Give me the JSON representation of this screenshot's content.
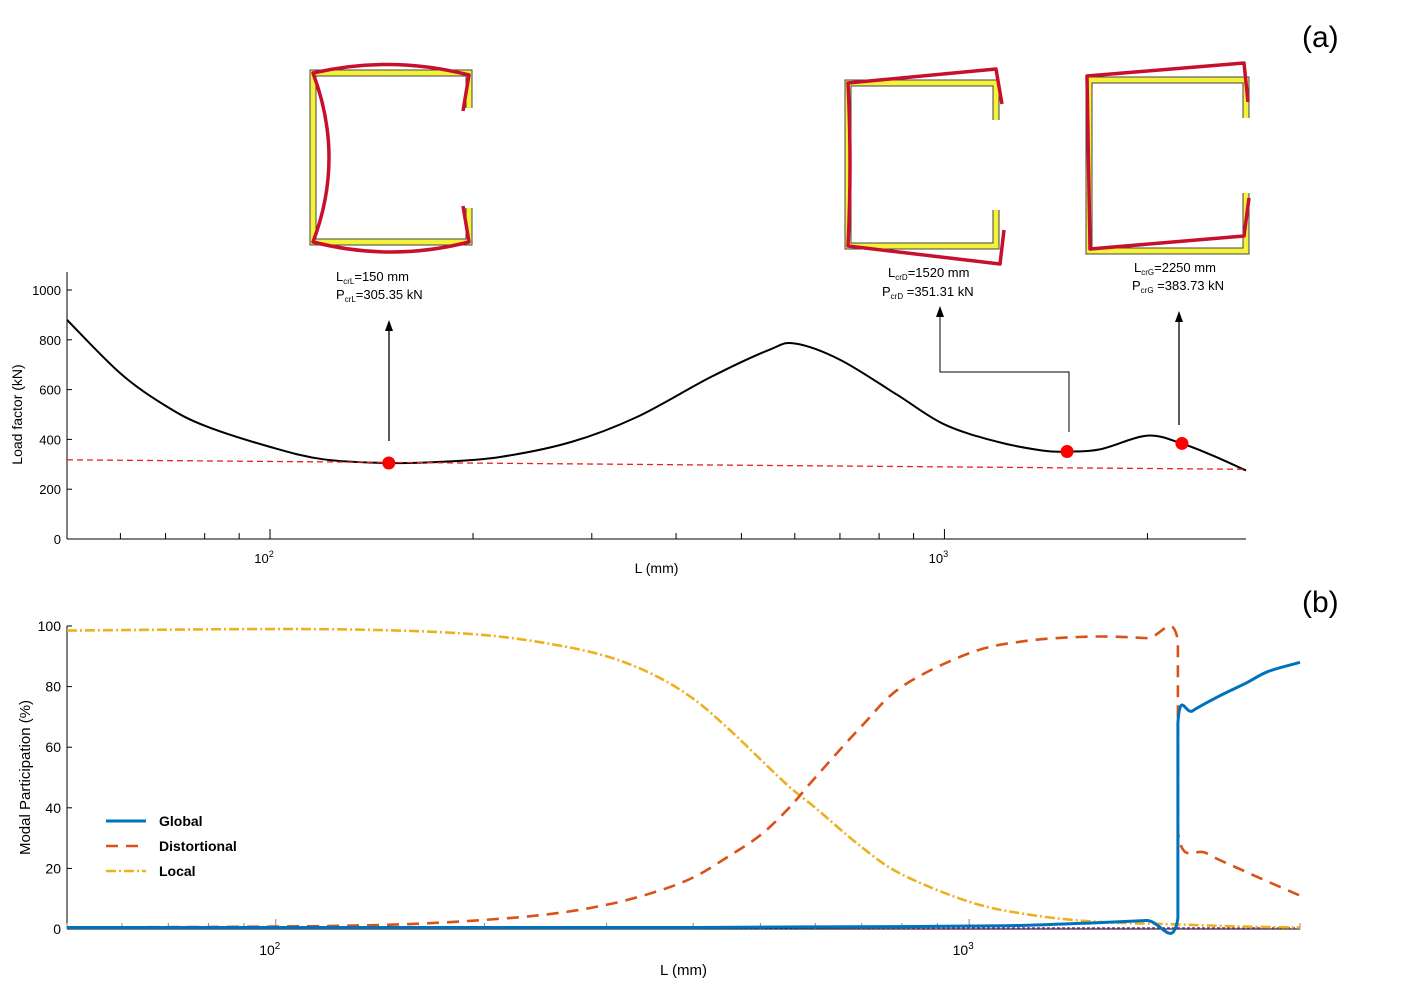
{
  "panel_a": {
    "label": "(a)",
    "annotations": [
      {
        "L_main": "L",
        "L_sub": "crL",
        "L_rest": "=150 mm",
        "P_main": "P",
        "P_sub": "crL",
        "P_rest": "=305.35 kN"
      },
      {
        "L_main": "L",
        "L_sub": "crD",
        "L_rest": "=1520 mm",
        "P_main": "P",
        "P_sub": "crD",
        "P_rest": " =351.31 kN"
      },
      {
        "L_main": "L",
        "L_sub": "crG",
        "L_rest": "=2250 mm",
        "P_main": "P",
        "P_sub": "crG",
        "P_rest": " =383.73 kN"
      }
    ]
  },
  "panel_b": {
    "label": "(b)"
  },
  "colors": {
    "curve": "#000000",
    "threshold": "#e8231f",
    "marker": "#ff0000",
    "global": "#0072bd",
    "distortional": "#d95319",
    "local": "#edb120",
    "section_fill": "#f5f23a",
    "section_outline": "#c8102e"
  },
  "chart_data": [
    {
      "type": "line",
      "xscale": "log",
      "xlim": [
        50,
        2800
      ],
      "ylim": [
        0,
        1000
      ],
      "xlabel": "L (mm)",
      "ylabel": "Load factor (kN)",
      "yticks": [
        0,
        200,
        400,
        600,
        800,
        1000
      ],
      "ytick_labels": [
        "0",
        "200",
        "400",
        "600",
        "800",
        "1000"
      ],
      "xtick_labels": [
        {
          "base": "10",
          "exp": "2",
          "value": 100
        },
        {
          "base": "10",
          "exp": "3",
          "value": 1000
        }
      ],
      "grid": false,
      "series": [
        {
          "x": [
            50,
            60,
            70,
            80,
            100,
            120,
            150,
            180,
            220,
            280,
            350,
            450,
            550,
            600,
            700,
            850,
            1000,
            1200,
            1400,
            1520,
            1700,
            2000,
            2250,
            2500,
            2800
          ],
          "y": [
            880,
            665,
            535,
            455,
            370,
            320,
            305,
            310,
            330,
            390,
            490,
            650,
            760,
            785,
            720,
            580,
            460,
            390,
            355,
            351,
            360,
            415,
            383,
            335,
            275
          ]
        },
        {
          "x": [
            50,
            2800
          ],
          "y": [
            318,
            280
          ]
        }
      ],
      "points": [
        {
          "x": 150,
          "y": 305.35
        },
        {
          "x": 1520,
          "y": 351.31
        },
        {
          "x": 2250,
          "y": 383.73
        }
      ]
    },
    {
      "type": "line",
      "xscale": "log",
      "xlim": [
        50,
        3000
      ],
      "ylim": [
        0,
        100
      ],
      "xlabel": "L (mm)",
      "ylabel": "Modal Participation (%)",
      "yticks": [
        0,
        20,
        40,
        60,
        80,
        100
      ],
      "ytick_labels": [
        "0",
        "20",
        "40",
        "60",
        "80",
        "100"
      ],
      "xtick_labels": [
        {
          "base": "10",
          "exp": "2",
          "value": 100
        },
        {
          "base": "10",
          "exp": "3",
          "value": 1000
        }
      ],
      "grid": false,
      "legend_position": "bottom-left",
      "series": [
        {
          "name": "Global",
          "style": "solid",
          "x": [
            50,
            100,
            200,
            400,
            600,
            800,
            1000,
            1200,
            1500,
            1800,
            2000,
            2000,
            2100,
            2300,
            2500,
            2700,
            3000
          ],
          "y": [
            0.5,
            0.5,
            0.5,
            0.5,
            0.7,
            0.8,
            1.0,
            1.2,
            2.0,
            2.8,
            3.5,
            68,
            72,
            77,
            81,
            85,
            88
          ]
        },
        {
          "name": "Distortional",
          "style": "dashed",
          "x": [
            50,
            100,
            150,
            200,
            250,
            300,
            350,
            400,
            450,
            500,
            550,
            600,
            700,
            800,
            1000,
            1200,
            1500,
            1800,
            2000,
            2000,
            2200,
            2500,
            2800,
            3000
          ],
          "y": [
            0.5,
            0.8,
            1.5,
            3,
            5,
            8,
            12,
            17,
            24,
            31,
            40,
            50,
            67,
            80,
            91,
            95,
            96.5,
            96,
            95,
            32,
            25,
            19,
            14,
            11
          ]
        },
        {
          "name": "Local",
          "style": "dashdot",
          "x": [
            50,
            100,
            150,
            200,
            250,
            300,
            350,
            400,
            450,
            500,
            550,
            600,
            700,
            800,
            1000,
            1200,
            1500,
            2000,
            2500,
            3000
          ],
          "y": [
            98.5,
            99,
            98.5,
            97,
            94,
            90,
            84,
            76,
            66,
            56,
            47,
            40,
            27,
            18,
            9,
            5,
            2.5,
            1.5,
            0.8,
            0.5
          ]
        }
      ]
    }
  ]
}
